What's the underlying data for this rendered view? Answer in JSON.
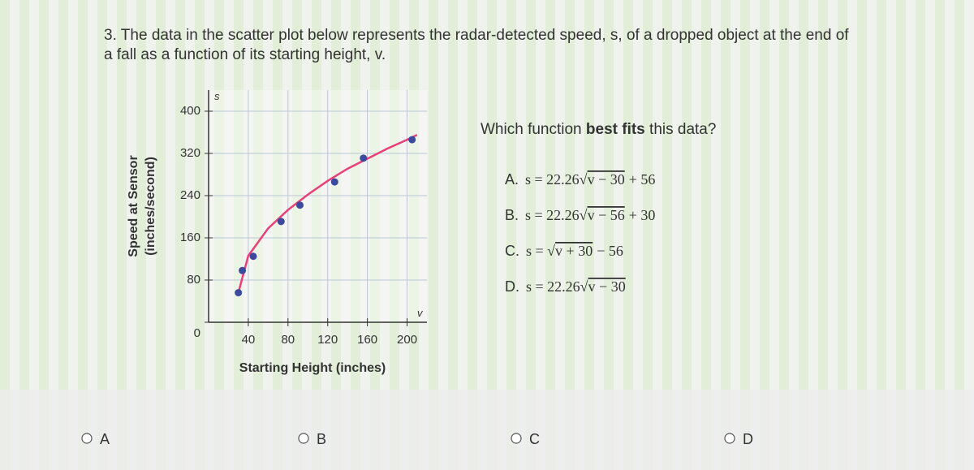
{
  "question": {
    "number": "3.",
    "line1": "The data in the scatter plot below represents the radar-detected speed, s, of a dropped object at the end of",
    "line2": "a fall as a function of its starting height, v."
  },
  "chart_data": {
    "type": "scatter",
    "y_axis_label": [
      "Speed at Sensor",
      "(inches/second)"
    ],
    "x_axis_label": "Starting Height (inches)",
    "y_axis_name": "s",
    "x_axis_name": "v",
    "xlim": [
      0,
      220
    ],
    "ylim": [
      0,
      440
    ],
    "xticks": [
      40,
      80,
      120,
      160,
      200
    ],
    "yticks": [
      0,
      80,
      160,
      240,
      320,
      400
    ],
    "grid": true,
    "series": [
      {
        "type": "scatter",
        "color": "#3b4a9c",
        "x": [
          30,
          34,
          45,
          73,
          92,
          127,
          156,
          205
        ],
        "values": [
          56,
          98,
          125,
          191,
          222,
          266,
          311,
          346
        ]
      },
      {
        "type": "line",
        "color": "#e8407a",
        "x": [
          30,
          40,
          60,
          80,
          100,
          120,
          140,
          160,
          180,
          200,
          210
        ],
        "values": [
          56,
          126,
          178,
          213,
          242,
          268,
          291,
          310,
          329,
          346,
          355
        ]
      }
    ]
  },
  "prompt": {
    "before": "Which function ",
    "bold": "best fits",
    "after": " this data?"
  },
  "choices": [
    {
      "letter": "A.",
      "pre": "s = 22.26",
      "radicand": "v − 30",
      "post": "+ 56"
    },
    {
      "letter": "B.",
      "pre": "s = 22.26",
      "radicand": "v − 56",
      "post": "+ 30"
    },
    {
      "letter": "C.",
      "pre": "s = ",
      "radicand": "v + 30",
      "post": "− 56"
    },
    {
      "letter": "D.",
      "pre": "s = 22.26",
      "radicand": "v − 30",
      "post": ""
    }
  ],
  "answers": [
    "A",
    "B",
    "C",
    "D"
  ]
}
